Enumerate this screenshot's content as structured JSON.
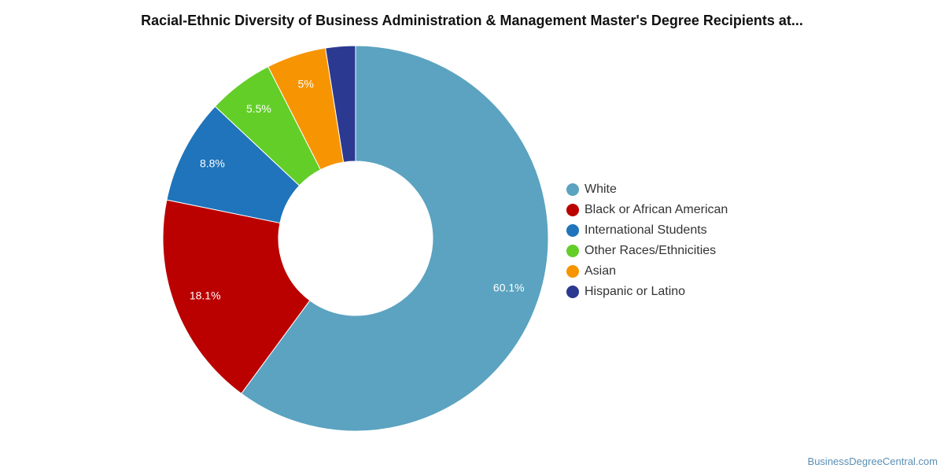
{
  "chart_data": {
    "type": "pie",
    "title": "Racial-Ethnic Diversity of Business Administration & Management Master's Degree Recipients at...",
    "slices": [
      {
        "label": "White",
        "value": 60.1,
        "display": "60.1%",
        "color": "#5ba3c0"
      },
      {
        "label": "Black or African American",
        "value": 18.1,
        "display": "18.1%",
        "color": "#bb0000"
      },
      {
        "label": "International Students",
        "value": 8.8,
        "display": "8.8%",
        "color": "#1f74bb"
      },
      {
        "label": "Other Races/Ethnicities",
        "value": 5.5,
        "display": "5.5%",
        "color": "#63ce27"
      },
      {
        "label": "Asian",
        "value": 5.0,
        "display": "5%",
        "color": "#f79401"
      },
      {
        "label": "Hispanic or Latino",
        "value": 2.5,
        "display": "",
        "color": "#2b3990"
      }
    ],
    "legend_position": "right"
  },
  "watermark": "BusinessDegreeCentral.com"
}
